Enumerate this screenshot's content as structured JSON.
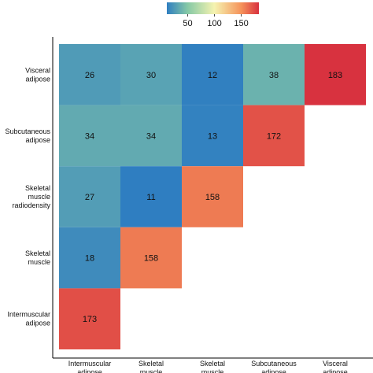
{
  "chart_data": {
    "type": "heatmap",
    "rows": [
      "Visceral\nadipose",
      "Subcutaneous\nadipose",
      "Skeletal\nmuscle\nradiodensity",
      "Skeletal\nmuscle",
      "Intermuscular\nadipose"
    ],
    "columns": [
      "Intermuscular\nadipose",
      "Skeletal\nmuscle",
      "Skeletal\nmuscle",
      "Subcutaneous\nadipose",
      "Visceral\nadipose"
    ],
    "values": [
      [
        26,
        30,
        12,
        38,
        183
      ],
      [
        34,
        34,
        13,
        172,
        null
      ],
      [
        27,
        11,
        158,
        null,
        null
      ],
      [
        18,
        158,
        null,
        null,
        null
      ],
      [
        173,
        null,
        null,
        null,
        null
      ]
    ],
    "color_scale": {
      "min": 11,
      "max": 183,
      "ticks": [
        50,
        100,
        150
      ],
      "stops": [
        {
          "value": 11,
          "color": "#2f7ec1"
        },
        {
          "value": 50,
          "color": "#86c9a6"
        },
        {
          "value": 100,
          "color": "#f5f3b0"
        },
        {
          "value": 150,
          "color": "#f5925a"
        },
        {
          "value": 183,
          "color": "#d8323f"
        }
      ]
    },
    "legend_position": "top",
    "grid": false
  }
}
